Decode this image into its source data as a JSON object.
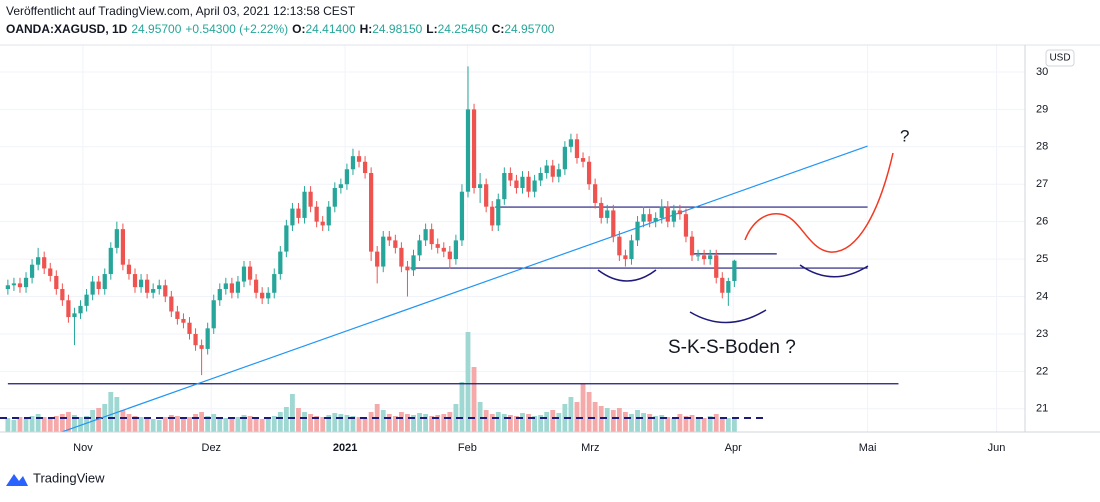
{
  "header": {
    "published": "Veröffentlicht auf TradingView.com, April 03, 2021 12:13:58 CEST",
    "symbol": "OANDA:XAGUSD, 1D",
    "last": "24.95700",
    "change": "+0.54300 (+2.22%)",
    "open_label": "O:",
    "open": "24.41400",
    "high_label": "H:",
    "high": "24.98150",
    "low_label": "L:",
    "low": "24.25450",
    "close_label": "C:",
    "close": "24.95700"
  },
  "chart_data": {
    "type": "candlestick",
    "currency": "USD",
    "ylim": [
      20.38,
      30.72
    ],
    "yticks": [
      21,
      22,
      23,
      24,
      25,
      26,
      27,
      28,
      29,
      30
    ],
    "xlim": [
      -1.3,
      168
    ],
    "xticks": [
      {
        "value": 12.4,
        "label": "Nov"
      },
      {
        "value": 33.6,
        "label": "Dez"
      },
      {
        "value": 55.7,
        "label": "2021"
      },
      {
        "value": 75.9,
        "label": "Feb"
      },
      {
        "value": 96.2,
        "label": "Mrz"
      },
      {
        "value": 119.8,
        "label": "Apr"
      },
      {
        "value": 142,
        "label": "Mai"
      },
      {
        "value": 163.3,
        "label": "Jun"
      }
    ],
    "grid": true,
    "up_color": "#26a69a",
    "down_color": "#ef5350",
    "volume_up_color": "#9fd8d2",
    "volume_down_color": "#f5a9a9",
    "candles": [
      [
        24.2,
        24.45,
        24.05,
        24.3
      ],
      [
        24.3,
        24.5,
        24.15,
        24.35
      ],
      [
        24.35,
        24.5,
        24.1,
        24.25
      ],
      [
        24.25,
        24.65,
        24.1,
        24.5
      ],
      [
        24.5,
        25.0,
        24.35,
        24.85
      ],
      [
        24.85,
        25.3,
        24.7,
        25.05
      ],
      [
        25.05,
        25.2,
        24.6,
        24.75
      ],
      [
        24.75,
        24.9,
        24.4,
        24.55
      ],
      [
        24.55,
        24.7,
        24.05,
        24.2
      ],
      [
        24.2,
        24.35,
        23.75,
        23.9
      ],
      [
        23.9,
        24.05,
        23.3,
        23.45
      ],
      [
        23.45,
        23.7,
        22.7,
        23.55
      ],
      [
        23.55,
        23.9,
        23.4,
        23.75
      ],
      [
        23.75,
        24.2,
        23.6,
        24.05
      ],
      [
        24.05,
        24.55,
        23.9,
        24.4
      ],
      [
        24.4,
        24.55,
        24.05,
        24.2
      ],
      [
        24.2,
        24.75,
        24.05,
        24.6
      ],
      [
        24.6,
        25.45,
        24.45,
        25.3
      ],
      [
        25.3,
        26.0,
        25.15,
        25.8
      ],
      [
        25.8,
        25.95,
        24.7,
        24.85
      ],
      [
        24.85,
        25.0,
        24.45,
        24.6
      ],
      [
        24.6,
        24.75,
        24.1,
        24.25
      ],
      [
        24.25,
        24.6,
        24.1,
        24.45
      ],
      [
        24.45,
        24.6,
        23.95,
        24.1
      ],
      [
        24.1,
        24.35,
        23.95,
        24.2
      ],
      [
        24.2,
        24.45,
        24.05,
        24.3
      ],
      [
        24.3,
        24.45,
        23.85,
        24.0
      ],
      [
        24.0,
        24.15,
        23.45,
        23.6
      ],
      [
        23.6,
        23.75,
        23.25,
        23.4
      ],
      [
        23.4,
        23.55,
        23.15,
        23.3
      ],
      [
        23.3,
        23.45,
        22.85,
        23.0
      ],
      [
        23.0,
        23.15,
        22.55,
        22.7
      ],
      [
        22.7,
        22.85,
        21.9,
        22.6
      ],
      [
        22.6,
        23.3,
        22.45,
        23.15
      ],
      [
        23.15,
        24.05,
        23.0,
        23.9
      ],
      [
        23.9,
        24.35,
        23.75,
        24.2
      ],
      [
        24.2,
        24.5,
        24.05,
        24.35
      ],
      [
        24.35,
        24.5,
        23.95,
        24.1
      ],
      [
        24.1,
        24.55,
        23.95,
        24.4
      ],
      [
        24.4,
        24.95,
        24.25,
        24.8
      ],
      [
        24.8,
        24.95,
        24.3,
        24.45
      ],
      [
        24.45,
        24.6,
        23.95,
        24.1
      ],
      [
        24.1,
        24.25,
        23.8,
        23.95
      ],
      [
        23.95,
        24.25,
        23.8,
        24.1
      ],
      [
        24.1,
        24.75,
        23.95,
        24.6
      ],
      [
        24.6,
        25.35,
        24.45,
        25.2
      ],
      [
        25.2,
        26.05,
        25.05,
        25.9
      ],
      [
        25.9,
        26.5,
        25.75,
        26.35
      ],
      [
        26.35,
        26.5,
        25.95,
        26.1
      ],
      [
        26.1,
        26.95,
        25.95,
        26.8
      ],
      [
        26.8,
        26.95,
        26.25,
        26.4
      ],
      [
        26.4,
        26.55,
        25.85,
        26.0
      ],
      [
        26.0,
        26.15,
        25.75,
        25.9
      ],
      [
        25.9,
        26.55,
        25.75,
        26.4
      ],
      [
        26.4,
        27.05,
        26.25,
        26.9
      ],
      [
        26.9,
        27.15,
        26.75,
        27.0
      ],
      [
        27.0,
        27.55,
        26.85,
        27.4
      ],
      [
        27.4,
        27.95,
        27.25,
        27.75
      ],
      [
        27.75,
        27.9,
        27.45,
        27.6
      ],
      [
        27.6,
        27.75,
        27.15,
        27.3
      ],
      [
        27.3,
        27.45,
        24.95,
        25.2
      ],
      [
        25.2,
        25.35,
        24.35,
        24.8
      ],
      [
        24.8,
        25.75,
        24.65,
        25.6
      ],
      [
        25.6,
        25.75,
        25.35,
        25.5
      ],
      [
        25.5,
        25.65,
        25.15,
        25.3
      ],
      [
        25.3,
        25.45,
        24.65,
        24.8
      ],
      [
        24.8,
        24.95,
        24.0,
        24.7
      ],
      [
        24.7,
        25.25,
        24.55,
        25.1
      ],
      [
        25.1,
        25.65,
        24.95,
        25.5
      ],
      [
        25.5,
        25.95,
        25.35,
        25.8
      ],
      [
        25.8,
        25.95,
        25.25,
        25.4
      ],
      [
        25.4,
        25.55,
        25.15,
        25.3
      ],
      [
        25.3,
        25.45,
        25.05,
        25.2
      ],
      [
        25.2,
        25.35,
        24.75,
        25.0
      ],
      [
        25.0,
        25.65,
        24.85,
        25.5
      ],
      [
        25.5,
        27.0,
        25.35,
        26.8
      ],
      [
        26.8,
        30.15,
        26.65,
        29.0
      ],
      [
        29.0,
        29.15,
        26.75,
        26.9
      ],
      [
        26.9,
        27.3,
        26.5,
        27.0
      ],
      [
        27.0,
        27.15,
        26.25,
        26.4
      ],
      [
        26.4,
        26.55,
        25.75,
        25.9
      ],
      [
        25.9,
        26.75,
        25.75,
        26.6
      ],
      [
        26.6,
        27.45,
        26.45,
        27.3
      ],
      [
        27.3,
        27.45,
        26.95,
        27.1
      ],
      [
        27.1,
        27.25,
        26.75,
        26.9
      ],
      [
        26.9,
        27.35,
        26.75,
        27.2
      ],
      [
        27.2,
        27.35,
        26.65,
        26.8
      ],
      [
        26.8,
        27.25,
        26.65,
        27.1
      ],
      [
        27.1,
        27.45,
        26.95,
        27.3
      ],
      [
        27.3,
        27.65,
        27.15,
        27.5
      ],
      [
        27.5,
        27.65,
        27.05,
        27.2
      ],
      [
        27.2,
        27.55,
        27.05,
        27.4
      ],
      [
        27.4,
        28.15,
        27.25,
        28.0
      ],
      [
        28.0,
        28.35,
        27.85,
        28.2
      ],
      [
        28.2,
        28.35,
        27.55,
        27.7
      ],
      [
        27.7,
        27.85,
        27.45,
        27.6
      ],
      [
        27.6,
        27.75,
        26.85,
        27.0
      ],
      [
        27.0,
        27.15,
        26.35,
        26.5
      ],
      [
        26.5,
        26.65,
        25.95,
        26.1
      ],
      [
        26.1,
        26.45,
        25.95,
        26.3
      ],
      [
        26.3,
        26.45,
        25.45,
        25.6
      ],
      [
        25.6,
        25.75,
        24.95,
        25.1
      ],
      [
        25.1,
        25.25,
        24.8,
        25.0
      ],
      [
        25.0,
        25.65,
        24.85,
        25.5
      ],
      [
        25.5,
        26.15,
        25.35,
        26.0
      ],
      [
        26.0,
        26.4,
        25.85,
        26.2
      ],
      [
        26.2,
        26.35,
        25.85,
        26.0
      ],
      [
        26.0,
        26.25,
        25.85,
        26.1
      ],
      [
        26.1,
        26.6,
        25.95,
        26.4
      ],
      [
        26.4,
        26.55,
        25.85,
        26.0
      ],
      [
        26.0,
        26.45,
        25.85,
        26.3
      ],
      [
        26.3,
        26.45,
        26.05,
        26.2
      ],
      [
        26.2,
        26.35,
        25.45,
        25.6
      ],
      [
        25.6,
        25.75,
        24.95,
        25.1
      ],
      [
        25.1,
        25.25,
        24.95,
        25.1
      ],
      [
        25.1,
        25.25,
        24.85,
        25.0
      ],
      [
        25.0,
        25.25,
        24.85,
        25.1
      ],
      [
        25.1,
        25.25,
        24.35,
        24.5
      ],
      [
        24.5,
        24.65,
        23.95,
        24.1
      ],
      [
        24.1,
        24.5,
        23.75,
        24.414
      ],
      [
        24.414,
        24.9815,
        24.2545,
        24.957
      ]
    ],
    "volume": [
      14,
      12,
      15,
      13,
      16,
      18,
      15,
      14,
      16,
      18,
      20,
      17,
      15,
      16,
      22,
      24,
      28,
      40,
      35,
      22,
      18,
      16,
      15,
      14,
      13,
      12,
      15,
      17,
      16,
      14,
      15,
      18,
      20,
      16,
      18,
      15,
      14,
      13,
      15,
      17,
      16,
      14,
      13,
      15,
      16,
      20,
      25,
      38,
      24,
      20,
      18,
      16,
      15,
      17,
      19,
      18,
      17,
      16,
      15,
      14,
      20,
      28,
      22,
      18,
      16,
      20,
      18,
      17,
      19,
      18,
      16,
      17,
      18,
      20,
      28,
      50,
      100,
      65,
      30,
      22,
      18,
      20,
      18,
      17,
      16,
      19,
      18,
      16,
      17,
      20,
      22,
      19,
      28,
      35,
      30,
      48,
      40,
      30,
      26,
      24,
      22,
      24,
      20,
      18,
      22,
      19,
      18,
      16,
      17,
      15,
      14,
      18,
      16,
      17,
      15,
      14,
      16,
      18,
      15,
      14,
      13
    ],
    "volume_lim": [
      0,
      100
    ],
    "volume_ma": 14,
    "volume_ma_color": "#1e1a7a",
    "drawings": {
      "lines": [
        {
          "color": "#1e1a7a",
          "points": [
            [
              0,
              21.67
            ],
            [
              147.1,
              21.67
            ]
          ]
        },
        {
          "color": "#1e1a7a",
          "points": [
            [
              80.5,
              26.39
            ],
            [
              142,
              26.39
            ]
          ]
        },
        {
          "color": "#1e1a7a",
          "points": [
            [
              66.5,
              24.76
            ],
            [
              142,
              24.76
            ]
          ]
        },
        {
          "color": "#1e1a7a",
          "points": [
            [
              112.7,
              25.14
            ],
            [
              127,
              25.14
            ]
          ]
        },
        {
          "color": "#2196f3",
          "points": [
            [
              0,
              19.87
            ],
            [
              142,
              28.02
            ]
          ]
        }
      ]
    },
    "annotations": [
      {
        "text": "?",
        "color": "#f23a22"
      },
      {
        "text": "S-K-S-Boden ?",
        "color": "#2a2a8e"
      }
    ]
  },
  "footer": {
    "brand": "TradingView"
  }
}
